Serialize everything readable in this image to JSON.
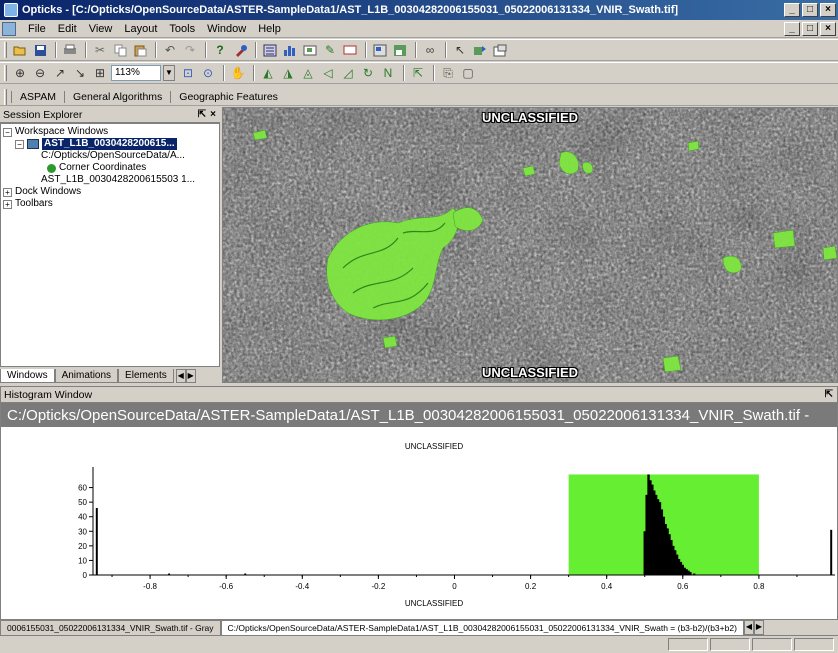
{
  "window": {
    "title": "Opticks - [C:/Opticks/OpenSourceData/ASTER-SampleData1/AST_L1B_00304282006155031_05022006131334_VNIR_Swath.tif]",
    "controls": [
      "_",
      "□",
      "×"
    ]
  },
  "menubar": {
    "items": [
      "File",
      "Edit",
      "View",
      "Layout",
      "Tools",
      "Window",
      "Help"
    ],
    "mdi_controls": [
      "_",
      "□",
      "×"
    ]
  },
  "toolbar": {
    "zoom_value": "113%"
  },
  "plugin_tabs": [
    "ASPAM",
    "General Algorithms",
    "Geographic Features"
  ],
  "session_explorer": {
    "title": "Session Explorer",
    "tree": {
      "workspace": "Workspace Windows",
      "dataset": "AST_L1B_0030428200615...",
      "path": "C:/Opticks/OpenSourceData/A...",
      "corner": "Corner Coordinates",
      "layer": "AST_L1B_0030428200615503 1...",
      "dock": "Dock Windows",
      "toolbars": "Toolbars"
    },
    "tabs": [
      "Windows",
      "Animations",
      "Elements"
    ]
  },
  "image_view": {
    "classification_top": "UNCLASSIFIED",
    "classification_bottom": "UNCLASSIFIED"
  },
  "histogram": {
    "title": "Histogram Window",
    "path": "C:/Opticks/OpenSourceData/ASTER-SampleData1/AST_L1B_00304282006155031_05022006131334_VNIR_Swath.tif  -",
    "plot_top_label": "UNCLASSIFIED",
    "plot_bottom_label": "UNCLASSIFIED"
  },
  "chart_data": {
    "type": "bar",
    "title": "",
    "xlabel": "",
    "ylabel": "",
    "xlim": [
      -0.95,
      1.0
    ],
    "ylim": [
      0,
      70
    ],
    "x_ticks": [
      "-0.8",
      "-0.6",
      "-0.4",
      "-0.2",
      "0",
      "0.2",
      "0.4",
      "0.6",
      "0.8"
    ],
    "x_tick_values": [
      -0.8,
      -0.6,
      -0.4,
      -0.2,
      0,
      0.2,
      0.4,
      0.6,
      0.8
    ],
    "y_ticks": [
      "0",
      "10",
      "20",
      "30",
      "40",
      "50",
      "60"
    ],
    "y_tick_values": [
      0,
      10,
      20,
      30,
      40,
      50,
      60
    ],
    "highlight_range": [
      0.3,
      0.8
    ],
    "highlight_color": "#66ee33",
    "bins": [
      {
        "x": -0.94,
        "y": 46
      },
      {
        "x": -0.75,
        "y": 1
      },
      {
        "x": -0.55,
        "y": 1
      },
      {
        "x": 0.5,
        "y": 30
      },
      {
        "x": 0.505,
        "y": 55
      },
      {
        "x": 0.51,
        "y": 69
      },
      {
        "x": 0.515,
        "y": 65
      },
      {
        "x": 0.52,
        "y": 62
      },
      {
        "x": 0.525,
        "y": 58
      },
      {
        "x": 0.53,
        "y": 55
      },
      {
        "x": 0.535,
        "y": 52
      },
      {
        "x": 0.54,
        "y": 50
      },
      {
        "x": 0.545,
        "y": 45
      },
      {
        "x": 0.55,
        "y": 40
      },
      {
        "x": 0.555,
        "y": 35
      },
      {
        "x": 0.56,
        "y": 32
      },
      {
        "x": 0.565,
        "y": 28
      },
      {
        "x": 0.57,
        "y": 24
      },
      {
        "x": 0.575,
        "y": 20
      },
      {
        "x": 0.58,
        "y": 17
      },
      {
        "x": 0.585,
        "y": 14
      },
      {
        "x": 0.59,
        "y": 11
      },
      {
        "x": 0.595,
        "y": 9
      },
      {
        "x": 0.6,
        "y": 7
      },
      {
        "x": 0.605,
        "y": 5
      },
      {
        "x": 0.61,
        "y": 4
      },
      {
        "x": 0.615,
        "y": 3
      },
      {
        "x": 0.62,
        "y": 2
      },
      {
        "x": 0.63,
        "y": 1
      },
      {
        "x": 0.99,
        "y": 31
      }
    ]
  },
  "doc_tabs": [
    "0006155031_05022006131334_VNIR_Swath.tif - Gray",
    "C:/Opticks/OpenSourceData/ASTER-SampleData1/AST_L1B_00304282006155031_05022006131334_VNIR_Swath = (b3-b2)/(b3+b2)"
  ]
}
